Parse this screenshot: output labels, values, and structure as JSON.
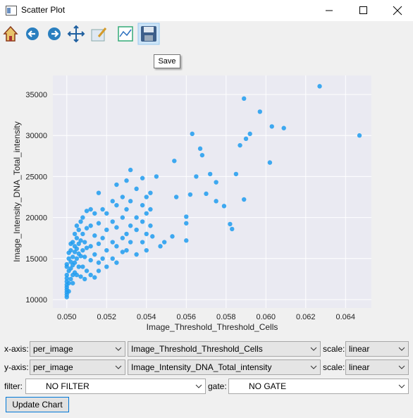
{
  "window": {
    "title": "Scatter Plot"
  },
  "toolbar": {
    "tooltip": "Save"
  },
  "chart_data": {
    "type": "scatter",
    "xlabel": "Image_Threshold_Threshold_Cells",
    "ylabel": "Image_Intensity_DNA_Total_intensity",
    "color": "#1e9cf0",
    "grid": true,
    "xlim": [
      0.0493,
      0.0653
    ],
    "ylim": [
      8970,
      37320
    ],
    "xticks": [
      {
        "value": 0.05,
        "label": "0.050"
      },
      {
        "value": 0.052,
        "label": "0.052"
      },
      {
        "value": 0.054,
        "label": "0.054"
      },
      {
        "value": 0.056,
        "label": "0.056"
      },
      {
        "value": 0.058,
        "label": "0.058"
      },
      {
        "value": 0.06,
        "label": "0.060"
      },
      {
        "value": 0.062,
        "label": "0.062"
      },
      {
        "value": 0.064,
        "label": "0.064"
      }
    ],
    "yticks": [
      10000,
      15000,
      20000,
      25000,
      30000,
      35000
    ],
    "x": [
      0.05,
      0.05,
      0.05,
      0.05,
      0.05,
      0.05,
      0.05,
      0.05,
      0.05,
      0.05,
      0.05,
      0.0501,
      0.0501,
      0.0501,
      0.0501,
      0.0501,
      0.0502,
      0.0502,
      0.0502,
      0.0502,
      0.0502,
      0.0503,
      0.0503,
      0.0503,
      0.0503,
      0.0503,
      0.0504,
      0.0504,
      0.0504,
      0.0504,
      0.0504,
      0.0505,
      0.0505,
      0.0505,
      0.0505,
      0.0505,
      0.0506,
      0.0506,
      0.0506,
      0.0506,
      0.0507,
      0.0507,
      0.0507,
      0.0507,
      0.0508,
      0.0508,
      0.0508,
      0.0508,
      0.0509,
      0.0509,
      0.0509,
      0.051,
      0.051,
      0.051,
      0.051,
      0.0512,
      0.0512,
      0.0512,
      0.0512,
      0.0512,
      0.0514,
      0.0514,
      0.0514,
      0.0514,
      0.0516,
      0.0516,
      0.0516,
      0.0516,
      0.0516,
      0.0518,
      0.0518,
      0.0518,
      0.052,
      0.052,
      0.052,
      0.052,
      0.0523,
      0.0523,
      0.0523,
      0.0523,
      0.0525,
      0.0525,
      0.0525,
      0.0525,
      0.0525,
      0.0528,
      0.0528,
      0.0528,
      0.0528,
      0.053,
      0.053,
      0.053,
      0.053,
      0.0532,
      0.0532,
      0.0532,
      0.0532,
      0.0535,
      0.0535,
      0.0535,
      0.0535,
      0.0538,
      0.0538,
      0.0538,
      0.0538,
      0.054,
      0.054,
      0.054,
      0.054,
      0.0542,
      0.0542,
      0.0542,
      0.0627,
      0.0647,
      0.0589,
      0.0597,
      0.0603,
      0.0609,
      0.0592,
      0.059,
      0.0587,
      0.0602,
      0.0585,
      0.0589,
      0.0582,
      0.0583,
      0.0563,
      0.0567,
      0.0568,
      0.0554,
      0.0572,
      0.0575,
      0.057,
      0.0575,
      0.0579,
      0.0562,
      0.056,
      0.056,
      0.056,
      0.0553,
      0.0549,
      0.0543,
      0.0547,
      0.0565,
      0.0555,
      0.0545
    ],
    "values": [
      10300,
      10600,
      10900,
      11200,
      11500,
      11800,
      12200,
      12600,
      13000,
      14000,
      14300,
      11000,
      12000,
      13500,
      15000,
      15700,
      12500,
      13800,
      14600,
      16000,
      16800,
      13000,
      14200,
      15200,
      17000,
      12000,
      14500,
      15800,
      16500,
      18000,
      13300,
      13000,
      15000,
      16200,
      17500,
      19000,
      14000,
      15600,
      16800,
      18500,
      12800,
      15300,
      17200,
      19500,
      14000,
      16000,
      18000,
      20000,
      15200,
      17000,
      12500,
      13500,
      16300,
      18700,
      20800,
      14800,
      16500,
      19000,
      21000,
      13000,
      15500,
      17800,
      20500,
      12700,
      14500,
      16800,
      19300,
      23000,
      13500,
      15000,
      17500,
      21000,
      16000,
      18500,
      20500,
      14000,
      17000,
      19500,
      22000,
      15000,
      16500,
      18800,
      21500,
      24000,
      14500,
      17500,
      20000,
      22500,
      15800,
      18000,
      21000,
      24500,
      16000,
      19000,
      22000,
      25800,
      17000,
      20000,
      23500,
      18500,
      15500,
      21500,
      24800,
      19500,
      17000,
      20500,
      22500,
      16000,
      18000,
      21000,
      19000,
      23000,
      36000,
      30000,
      34500,
      32900,
      31100,
      30900,
      30200,
      29600,
      28800,
      26700,
      25300,
      22200,
      19200,
      18600,
      30200,
      28400,
      27600,
      26900,
      25300,
      24300,
      22900,
      22000,
      21400,
      22800,
      20100,
      19300,
      17200,
      17700,
      17000,
      17700,
      16500,
      25000,
      22500,
      25000
    ]
  },
  "controls": {
    "x_axis": {
      "label": "x-axis:",
      "table": "per_image",
      "column": "Image_Threshold_Threshold_Cells",
      "scale_label": "scale:",
      "scale": "linear"
    },
    "y_axis": {
      "label": "y-axis:",
      "table": "per_image",
      "column": "Image_Intensity_DNA_Total_intensity",
      "scale_label": "scale:",
      "scale": "linear"
    },
    "filter": {
      "label": "filter:",
      "value": "NO FILTER"
    },
    "gate": {
      "label": "gate:",
      "value": "NO GATE"
    },
    "button": "Update Chart"
  }
}
